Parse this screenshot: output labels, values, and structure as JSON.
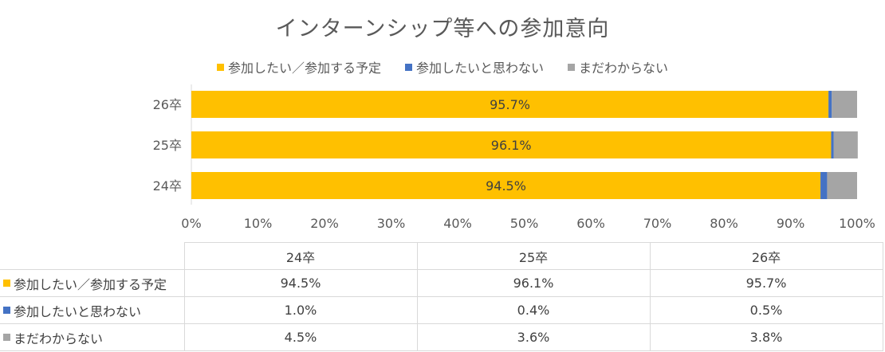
{
  "chart_data": {
    "type": "bar",
    "orientation": "horizontal",
    "stacked": "percent",
    "title": "インターンシップ等への参加意向",
    "categories": [
      "24卒",
      "25卒",
      "26卒"
    ],
    "series": [
      {
        "name": "参加したい／参加する予定",
        "color": "#FFC000",
        "values": [
          94.5,
          96.1,
          95.7
        ]
      },
      {
        "name": "参加したいと思わない",
        "color": "#4472C4",
        "values": [
          1.0,
          0.4,
          0.5
        ]
      },
      {
        "name": "まだわからない",
        "color": "#A5A5A5",
        "values": [
          4.5,
          3.6,
          3.8
        ]
      }
    ],
    "data_labels": [
      "94.5%",
      "96.1%",
      "95.7%"
    ],
    "xlim": [
      0,
      100
    ],
    "x_ticks": [
      "0%",
      "10%",
      "20%",
      "30%",
      "40%",
      "50%",
      "60%",
      "70%",
      "80%",
      "90%",
      "100%"
    ],
    "grid": false,
    "legend_position": "top"
  },
  "table": {
    "headers": [
      "24卒",
      "25卒",
      "26卒"
    ],
    "rows": [
      {
        "label": "参加したい／参加する予定",
        "color": "#FFC000",
        "cells": [
          "94.5%",
          "96.1%",
          "95.7%"
        ]
      },
      {
        "label": "参加したいと思わない",
        "color": "#4472C4",
        "cells": [
          "1.0%",
          "0.4%",
          "0.5%"
        ]
      },
      {
        "label": "まだわからない",
        "color": "#A5A5A5",
        "cells": [
          "4.5%",
          "3.6%",
          "3.8%"
        ]
      }
    ]
  }
}
